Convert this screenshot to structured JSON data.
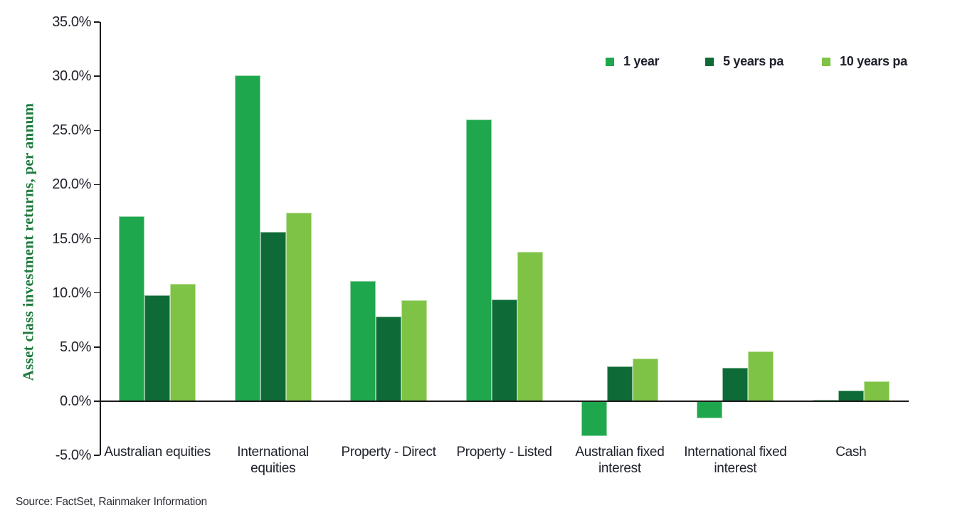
{
  "chart_data": {
    "type": "bar",
    "title": "",
    "xlabel": "",
    "ylabel": "Asset class investment returns, per annum",
    "ylim": [
      -5,
      35
    ],
    "ytick_step": 5,
    "ytick_labels": [
      "35.0%",
      "30.0%",
      "25.0%",
      "20.0%",
      "15.0%",
      "10.0%",
      "5.0%",
      "0.0%",
      "-5.0%"
    ],
    "grid": false,
    "legend_position": "top-right",
    "categories": [
      "Australian equities",
      "International\nequities",
      "Property - Direct",
      "Property - Listed",
      "Australian fixed\ninterest",
      "International fixed\ninterest",
      "Cash"
    ],
    "series": [
      {
        "name": "1 year",
        "color": "#1fa74d",
        "values": [
          17.1,
          30.1,
          11.1,
          26.0,
          -3.2,
          -1.6,
          0.1
        ]
      },
      {
        "name": "5 years pa",
        "color": "#0e6b38",
        "values": [
          9.8,
          15.6,
          7.8,
          9.4,
          3.2,
          3.1,
          1.0
        ]
      },
      {
        "name": "10 years pa",
        "color": "#7ec345",
        "values": [
          10.8,
          17.4,
          9.3,
          13.8,
          3.9,
          4.6,
          1.8
        ]
      }
    ]
  },
  "source_note": "Source: FactSet, Rainmaker Information",
  "colors": {
    "axis": "#1a1a1a",
    "text": "#20222c",
    "ylabel_green": "#1e7b3e"
  }
}
